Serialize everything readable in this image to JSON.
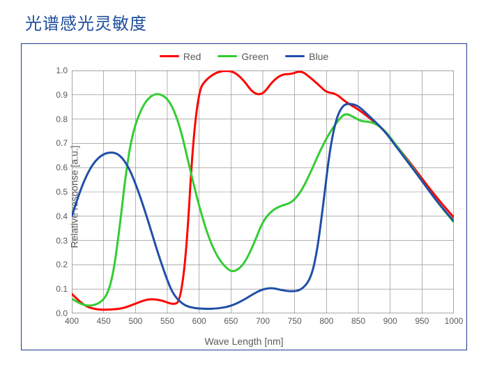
{
  "title": "光谱感光灵敏度",
  "chart": {
    "type": "line",
    "xlabel": "Wave Length [nm]",
    "ylabel": "Relative response [a.u.]",
    "label_fontsize": 14,
    "tick_fontsize": 12,
    "xlim": [
      400,
      1000
    ],
    "ylim": [
      0.0,
      1.0
    ],
    "xtick_step": 50,
    "ytick_step": 0.1,
    "xticks": [
      400,
      450,
      500,
      550,
      600,
      650,
      700,
      750,
      800,
      850,
      900,
      950,
      1000
    ],
    "yticks": [
      0.0,
      0.1,
      0.2,
      0.3,
      0.4,
      0.5,
      0.6,
      0.7,
      0.8,
      0.9,
      1.0
    ],
    "background_color": "#ffffff",
    "grid_color": "#808080",
    "grid_width": 0.6,
    "border_color": "#808080",
    "box_border_color": "#1a3c8c",
    "line_width": 3,
    "legend_position": "top-center",
    "series": [
      {
        "name": "Red",
        "color": "#ff0000",
        "points": [
          [
            400,
            0.08
          ],
          [
            420,
            0.03
          ],
          [
            440,
            0.015
          ],
          [
            460,
            0.015
          ],
          [
            480,
            0.02
          ],
          [
            500,
            0.04
          ],
          [
            520,
            0.06
          ],
          [
            540,
            0.055
          ],
          [
            560,
            0.035
          ],
          [
            570,
            0.05
          ],
          [
            580,
            0.25
          ],
          [
            590,
            0.7
          ],
          [
            600,
            0.92
          ],
          [
            610,
            0.96
          ],
          [
            625,
            0.99
          ],
          [
            640,
            1.0
          ],
          [
            655,
            0.995
          ],
          [
            670,
            0.96
          ],
          [
            685,
            0.905
          ],
          [
            700,
            0.9
          ],
          [
            715,
            0.955
          ],
          [
            730,
            0.985
          ],
          [
            745,
            0.985
          ],
          [
            760,
            1.0
          ],
          [
            775,
            0.97
          ],
          [
            790,
            0.935
          ],
          [
            800,
            0.91
          ],
          [
            815,
            0.905
          ],
          [
            830,
            0.87
          ],
          [
            850,
            0.84
          ],
          [
            870,
            0.8
          ],
          [
            890,
            0.755
          ],
          [
            910,
            0.69
          ],
          [
            930,
            0.625
          ],
          [
            950,
            0.555
          ],
          [
            975,
            0.47
          ],
          [
            1000,
            0.395
          ]
        ]
      },
      {
        "name": "Green",
        "color": "#33cc33",
        "points": [
          [
            400,
            0.06
          ],
          [
            420,
            0.03
          ],
          [
            440,
            0.035
          ],
          [
            455,
            0.07
          ],
          [
            465,
            0.16
          ],
          [
            475,
            0.35
          ],
          [
            485,
            0.58
          ],
          [
            495,
            0.74
          ],
          [
            510,
            0.85
          ],
          [
            525,
            0.9
          ],
          [
            540,
            0.905
          ],
          [
            555,
            0.87
          ],
          [
            570,
            0.77
          ],
          [
            585,
            0.6
          ],
          [
            600,
            0.44
          ],
          [
            615,
            0.31
          ],
          [
            630,
            0.225
          ],
          [
            645,
            0.18
          ],
          [
            655,
            0.17
          ],
          [
            670,
            0.2
          ],
          [
            685,
            0.28
          ],
          [
            700,
            0.38
          ],
          [
            715,
            0.425
          ],
          [
            730,
            0.445
          ],
          [
            745,
            0.455
          ],
          [
            760,
            0.5
          ],
          [
            775,
            0.58
          ],
          [
            790,
            0.67
          ],
          [
            805,
            0.745
          ],
          [
            820,
            0.8
          ],
          [
            830,
            0.825
          ],
          [
            845,
            0.805
          ],
          [
            855,
            0.79
          ],
          [
            870,
            0.79
          ],
          [
            890,
            0.76
          ],
          [
            910,
            0.69
          ],
          [
            930,
            0.62
          ],
          [
            950,
            0.545
          ],
          [
            975,
            0.455
          ],
          [
            1000,
            0.375
          ]
        ]
      },
      {
        "name": "Blue",
        "color": "#1f4ea8",
        "points": [
          [
            400,
            0.4
          ],
          [
            415,
            0.52
          ],
          [
            430,
            0.605
          ],
          [
            445,
            0.65
          ],
          [
            460,
            0.665
          ],
          [
            475,
            0.655
          ],
          [
            490,
            0.6
          ],
          [
            505,
            0.5
          ],
          [
            520,
            0.38
          ],
          [
            535,
            0.25
          ],
          [
            550,
            0.135
          ],
          [
            560,
            0.075
          ],
          [
            575,
            0.035
          ],
          [
            590,
            0.022
          ],
          [
            610,
            0.018
          ],
          [
            630,
            0.02
          ],
          [
            650,
            0.03
          ],
          [
            670,
            0.055
          ],
          [
            685,
            0.08
          ],
          [
            700,
            0.1
          ],
          [
            715,
            0.105
          ],
          [
            730,
            0.095
          ],
          [
            745,
            0.09
          ],
          [
            760,
            0.095
          ],
          [
            775,
            0.14
          ],
          [
            785,
            0.25
          ],
          [
            795,
            0.45
          ],
          [
            805,
            0.67
          ],
          [
            815,
            0.8
          ],
          [
            825,
            0.855
          ],
          [
            835,
            0.865
          ],
          [
            850,
            0.855
          ],
          [
            870,
            0.805
          ],
          [
            890,
            0.755
          ],
          [
            910,
            0.685
          ],
          [
            930,
            0.615
          ],
          [
            950,
            0.545
          ],
          [
            975,
            0.455
          ],
          [
            1000,
            0.38
          ]
        ]
      }
    ]
  }
}
